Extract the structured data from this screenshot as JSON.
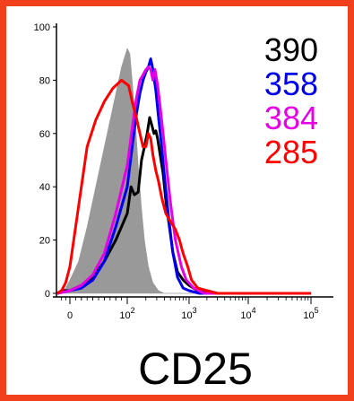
{
  "chart_data": {
    "type": "line",
    "title": "",
    "xlabel": "CD25",
    "ylabel": "",
    "x_scale": "biexponential",
    "x_ticks": [
      {
        "value": 0,
        "base": "0",
        "exp": ""
      },
      {
        "value": 100,
        "base": "10",
        "exp": "2"
      },
      {
        "value": 1000,
        "base": "10",
        "exp": "3"
      },
      {
        "value": 10000,
        "base": "10",
        "exp": "4"
      },
      {
        "value": 100000,
        "base": "10",
        "exp": "5"
      }
    ],
    "y_ticks": [
      "0",
      "20",
      "40",
      "60",
      "80",
      "100"
    ],
    "ylim": [
      0,
      100
    ],
    "grid": false,
    "legend_placement": "top-right",
    "series": [
      {
        "name": "390",
        "color": "#000000",
        "style": "line",
        "points": [
          [
            -30,
            0
          ],
          [
            -20,
            1
          ],
          [
            0,
            1
          ],
          [
            20,
            3
          ],
          [
            40,
            6
          ],
          [
            60,
            12
          ],
          [
            80,
            20
          ],
          [
            100,
            30
          ],
          [
            115,
            40
          ],
          [
            130,
            37
          ],
          [
            150,
            38
          ],
          [
            170,
            50
          ],
          [
            190,
            55
          ],
          [
            210,
            60
          ],
          [
            230,
            66
          ],
          [
            250,
            63
          ],
          [
            270,
            60
          ],
          [
            290,
            61
          ],
          [
            310,
            58
          ],
          [
            340,
            52
          ],
          [
            380,
            45
          ],
          [
            420,
            35
          ],
          [
            480,
            25
          ],
          [
            550,
            15
          ],
          [
            650,
            8
          ],
          [
            800,
            5
          ],
          [
            1000,
            3
          ],
          [
            1400,
            1
          ],
          [
            2000,
            1
          ],
          [
            3000,
            0
          ],
          [
            100000,
            0
          ]
        ]
      },
      {
        "name": "358",
        "color": "#0000ee",
        "style": "line",
        "points": [
          [
            -30,
            0
          ],
          [
            0,
            1
          ],
          [
            20,
            2
          ],
          [
            40,
            5
          ],
          [
            60,
            12
          ],
          [
            80,
            25
          ],
          [
            100,
            40
          ],
          [
            120,
            55
          ],
          [
            140,
            67
          ],
          [
            160,
            75
          ],
          [
            180,
            80
          ],
          [
            200,
            83
          ],
          [
            220,
            85
          ],
          [
            240,
            88
          ],
          [
            260,
            84
          ],
          [
            290,
            76
          ],
          [
            320,
            66
          ],
          [
            360,
            55
          ],
          [
            400,
            44
          ],
          [
            460,
            30
          ],
          [
            540,
            16
          ],
          [
            650,
            6
          ],
          [
            800,
            2
          ],
          [
            1000,
            1
          ],
          [
            1500,
            0
          ],
          [
            100000,
            0
          ]
        ]
      },
      {
        "name": "384",
        "color": "#e600e6",
        "style": "line",
        "points": [
          [
            -30,
            0
          ],
          [
            0,
            1
          ],
          [
            20,
            3
          ],
          [
            40,
            7
          ],
          [
            60,
            15
          ],
          [
            80,
            30
          ],
          [
            100,
            48
          ],
          [
            120,
            62
          ],
          [
            140,
            73
          ],
          [
            160,
            80
          ],
          [
            180,
            82
          ],
          [
            200,
            84
          ],
          [
            220,
            85
          ],
          [
            240,
            84
          ],
          [
            260,
            80
          ],
          [
            280,
            84
          ],
          [
            310,
            78
          ],
          [
            340,
            70
          ],
          [
            380,
            60
          ],
          [
            430,
            48
          ],
          [
            500,
            34
          ],
          [
            600,
            20
          ],
          [
            750,
            10
          ],
          [
            900,
            5
          ],
          [
            1200,
            2
          ],
          [
            1800,
            0
          ],
          [
            100000,
            0
          ]
        ]
      },
      {
        "name": "285",
        "color": "#ff0000",
        "style": "line",
        "points": [
          [
            -30,
            0
          ],
          [
            -20,
            1
          ],
          [
            -10,
            4
          ],
          [
            0,
            10
          ],
          [
            10,
            25
          ],
          [
            20,
            40
          ],
          [
            30,
            55
          ],
          [
            45,
            65
          ],
          [
            60,
            72
          ],
          [
            75,
            77
          ],
          [
            90,
            80
          ],
          [
            105,
            78
          ],
          [
            120,
            72
          ],
          [
            140,
            66
          ],
          [
            160,
            60
          ],
          [
            180,
            55
          ],
          [
            200,
            55
          ],
          [
            220,
            60
          ],
          [
            240,
            58
          ],
          [
            260,
            52
          ],
          [
            290,
            46
          ],
          [
            320,
            42
          ],
          [
            360,
            36
          ],
          [
            420,
            30
          ],
          [
            500,
            27
          ],
          [
            600,
            24
          ],
          [
            700,
            20
          ],
          [
            800,
            15
          ],
          [
            950,
            10
          ],
          [
            1100,
            5
          ],
          [
            1400,
            2
          ],
          [
            2000,
            1
          ],
          [
            3000,
            0
          ],
          [
            100000,
            0
          ]
        ]
      },
      {
        "name": "",
        "color": "#999999",
        "style": "filled",
        "points": [
          [
            -30,
            0
          ],
          [
            -10,
            2
          ],
          [
            0,
            5
          ],
          [
            15,
            12
          ],
          [
            30,
            25
          ],
          [
            45,
            40
          ],
          [
            60,
            55
          ],
          [
            75,
            70
          ],
          [
            90,
            85
          ],
          [
            100,
            92
          ],
          [
            110,
            90
          ],
          [
            120,
            80
          ],
          [
            135,
            65
          ],
          [
            150,
            48
          ],
          [
            170,
            32
          ],
          [
            190,
            20
          ],
          [
            220,
            10
          ],
          [
            260,
            4
          ],
          [
            320,
            1
          ],
          [
            400,
            0
          ],
          [
            100000,
            0
          ]
        ]
      }
    ]
  }
}
